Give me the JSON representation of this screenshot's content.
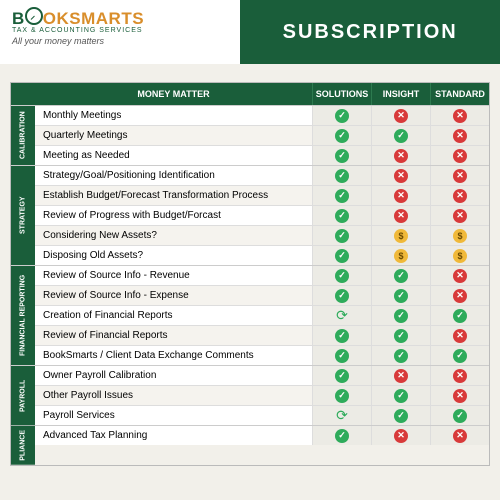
{
  "logo": {
    "brand1": "B",
    "brand2": "OKSMARTS",
    "sub": "TAX & ACCOUNTING SERVICES",
    "tag": "All your money matters"
  },
  "title": "SUBSCRIPTION",
  "cols": {
    "feat": "MONEY MATTER",
    "c1": "SOLUTIONS",
    "c2": "INSIGHT",
    "c3": "STANDARD"
  },
  "colors": {
    "green": "#1a5e3a",
    "check": "#2eab5b",
    "x": "#d83a3a",
    "dollar": "#f0b93a"
  },
  "sections": [
    {
      "label": "CALIBRATION",
      "rows": [
        {
          "f": "Monthly Meetings",
          "v": [
            "check",
            "x",
            "x"
          ]
        },
        {
          "f": "Quarterly Meetings",
          "v": [
            "check",
            "check",
            "x"
          ]
        },
        {
          "f": "Meeting as Needed",
          "v": [
            "check",
            "x",
            "x"
          ]
        }
      ]
    },
    {
      "label": "STRATEGY",
      "rows": [
        {
          "f": "Strategy/Goal/Positioning Identification",
          "v": [
            "check",
            "x",
            "x"
          ]
        },
        {
          "f": "Establish Budget/Forecast Transformation Process",
          "v": [
            "check",
            "x",
            "x"
          ]
        },
        {
          "f": "Review of Progress with Budget/Forcast",
          "v": [
            "check",
            "x",
            "x"
          ]
        },
        {
          "f": "Considering New Assets?",
          "v": [
            "check",
            "dollar",
            "dollar"
          ]
        },
        {
          "f": "Disposing Old Assets?",
          "v": [
            "check",
            "dollar",
            "dollar"
          ]
        }
      ]
    },
    {
      "label": "FINANCIAL REPORTING",
      "rows": [
        {
          "f": "Review of Source Info - Revenue",
          "v": [
            "check",
            "check",
            "x"
          ]
        },
        {
          "f": "Review of Source Info - Expense",
          "v": [
            "check",
            "check",
            "x"
          ]
        },
        {
          "f": "Creation of Financial Reports",
          "v": [
            "refresh",
            "check",
            "check"
          ]
        },
        {
          "f": "Review of Financial Reports",
          "v": [
            "check",
            "check",
            "x"
          ]
        },
        {
          "f": "BookSmarts / Client Data Exchange Comments",
          "v": [
            "check",
            "check",
            "check"
          ]
        }
      ]
    },
    {
      "label": "PAYROLL",
      "rows": [
        {
          "f": "Owner Payroll Calibration",
          "v": [
            "check",
            "x",
            "x"
          ]
        },
        {
          "f": "Other Payroll Issues",
          "v": [
            "check",
            "check",
            "x"
          ]
        },
        {
          "f": "Payroll Services",
          "v": [
            "refresh",
            "check",
            "check"
          ]
        }
      ]
    },
    {
      "label": "PLIANCE",
      "rows": [
        {
          "f": "Advanced Tax Planning",
          "v": [
            "check",
            "x",
            "x"
          ]
        }
      ]
    }
  ]
}
